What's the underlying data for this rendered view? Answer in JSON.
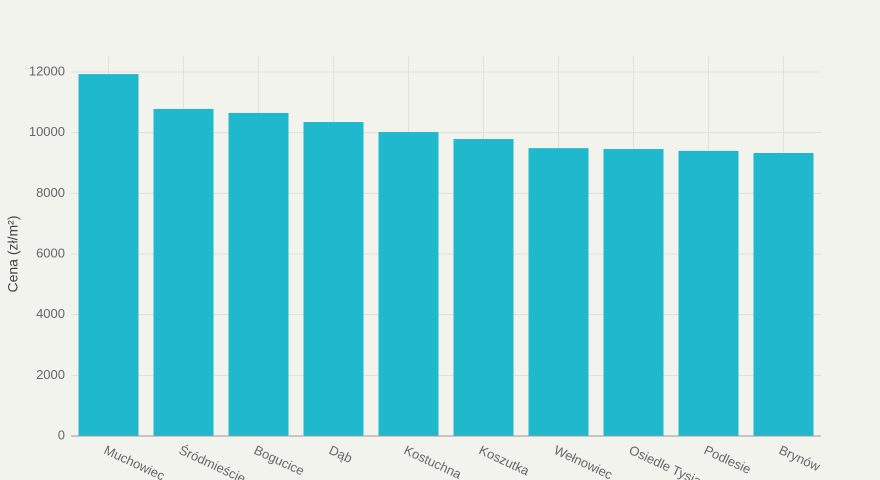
{
  "chart_data": {
    "type": "bar",
    "ylabel": "Cena (zł/m²)",
    "categories": [
      "Muchowiec",
      "Śródmieście",
      "Bogucice",
      "Dąb",
      "Kostuchna",
      "Koszutka",
      "Wełnowiec",
      "Osiedle Tysiąclecia",
      "Podlesie",
      "Brynów"
    ],
    "values": [
      11930,
      10780,
      10650,
      10350,
      10020,
      9790,
      9490,
      9460,
      9400,
      9330
    ],
    "color": "#1fb8cd",
    "ylim": [
      0,
      12000
    ],
    "yticks": [
      0,
      2000,
      4000,
      6000,
      8000,
      10000,
      12000
    ],
    "grid": true
  }
}
